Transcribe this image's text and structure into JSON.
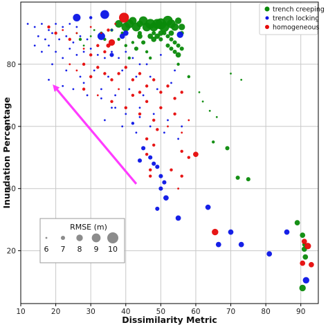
{
  "chart_data": {
    "type": "scatter",
    "xlabel": "Dissimilarity Metric",
    "ylabel": "Inundation Percentage",
    "xlim": [
      10,
      95
    ],
    "ylim": [
      3,
      100
    ],
    "xticks": [
      10,
      20,
      30,
      40,
      50,
      60,
      70,
      80,
      90
    ],
    "yticks": [
      20,
      40,
      60,
      80
    ],
    "grid": true,
    "legend": {
      "position": "top-right",
      "entries": [
        "trench creeping",
        "trench locking",
        "homogeneous"
      ]
    },
    "size_legend": {
      "title": "RMSE (m)",
      "values": [
        6,
        7,
        8,
        9,
        10
      ],
      "position": "bottom-left"
    },
    "annotation": {
      "type": "arrow",
      "color": "#ff3cff",
      "from": [
        43,
        41.5
      ],
      "to": [
        19.5,
        73
      ]
    },
    "series": [
      {
        "name": "trench creeping",
        "color": "#0a8a0a",
        "points": [
          [
            38,
            93,
            8.5
          ],
          [
            40,
            92,
            9
          ],
          [
            41,
            93,
            9
          ],
          [
            42,
            94,
            8.5
          ],
          [
            43,
            92,
            9
          ],
          [
            44,
            93,
            8
          ],
          [
            45,
            94,
            9
          ],
          [
            46,
            92,
            9
          ],
          [
            47,
            93,
            9.5
          ],
          [
            48,
            92,
            9
          ],
          [
            49,
            93,
            9.5
          ],
          [
            50,
            93,
            10
          ],
          [
            51,
            92,
            9.5
          ],
          [
            52,
            94,
            9.5
          ],
          [
            53,
            93,
            9
          ],
          [
            54,
            92,
            8.5
          ],
          [
            55,
            94,
            8
          ],
          [
            56,
            92,
            8
          ],
          [
            44,
            89,
            7.5
          ],
          [
            45,
            87,
            7
          ],
          [
            47,
            89,
            7.5
          ],
          [
            48,
            88,
            7.5
          ],
          [
            49,
            89,
            7.5
          ],
          [
            50,
            88,
            7
          ],
          [
            51,
            90,
            7
          ],
          [
            52,
            89,
            7
          ],
          [
            53,
            88,
            7
          ],
          [
            54,
            87,
            7
          ],
          [
            55,
            86,
            7
          ],
          [
            54,
            84,
            7
          ],
          [
            55,
            83,
            7.5
          ],
          [
            56,
            85,
            7
          ],
          [
            53,
            90,
            7.5
          ],
          [
            52,
            86,
            7
          ],
          [
            43,
            85,
            7
          ],
          [
            42,
            87,
            6.5
          ],
          [
            40,
            86,
            6.5
          ],
          [
            46,
            84,
            6.5
          ],
          [
            47,
            82,
            6.5
          ],
          [
            41,
            82,
            6.5
          ],
          [
            33,
            90,
            6.5
          ],
          [
            34,
            88,
            6.5
          ],
          [
            28,
            86,
            6
          ],
          [
            27,
            88,
            6.5
          ],
          [
            26,
            90,
            6
          ],
          [
            30,
            89,
            6
          ],
          [
            31,
            91,
            6
          ],
          [
            44,
            90,
            7
          ],
          [
            48,
            90,
            7
          ],
          [
            50,
            90,
            7.5
          ],
          [
            56,
            90,
            7
          ],
          [
            53,
            85,
            7
          ],
          [
            38,
            88,
            6.5
          ],
          [
            36,
            91,
            6.5
          ],
          [
            39,
            90,
            6.5
          ],
          [
            55,
            80,
            6.5
          ],
          [
            58,
            76,
            6.5
          ],
          [
            61,
            71,
            6
          ],
          [
            62,
            68,
            6
          ],
          [
            64,
            65,
            6
          ],
          [
            66,
            63,
            6
          ],
          [
            70,
            77,
            6
          ],
          [
            73,
            75,
            6
          ],
          [
            69,
            53,
            7
          ],
          [
            65,
            55,
            6.5
          ],
          [
            72,
            43.5,
            7
          ],
          [
            75,
            43,
            7
          ],
          [
            89,
            29,
            7.5
          ],
          [
            90.5,
            25,
            7.5
          ],
          [
            91,
            22,
            7
          ],
          [
            91.3,
            18,
            7.5
          ],
          [
            91,
            20.5,
            7.5
          ],
          [
            90.5,
            8,
            8
          ]
        ]
      },
      {
        "name": "trench locking",
        "color": "#0a14e6",
        "points": [
          [
            12,
            93,
            6
          ],
          [
            14,
            92,
            6
          ],
          [
            16,
            93,
            6
          ],
          [
            18,
            91,
            6
          ],
          [
            20,
            93,
            6
          ],
          [
            22,
            92,
            6
          ],
          [
            24,
            93,
            6
          ],
          [
            26,
            92,
            6
          ],
          [
            15,
            89,
            6
          ],
          [
            17,
            88,
            6
          ],
          [
            19,
            90,
            6
          ],
          [
            21,
            88,
            6
          ],
          [
            23,
            89,
            6
          ],
          [
            25,
            87,
            6
          ],
          [
            27,
            89,
            6
          ],
          [
            29,
            88,
            6
          ],
          [
            14,
            86,
            6
          ],
          [
            16,
            84,
            6
          ],
          [
            18,
            86,
            6
          ],
          [
            20,
            84,
            6
          ],
          [
            22,
            82,
            6
          ],
          [
            24,
            85,
            6
          ],
          [
            26,
            83,
            6
          ],
          [
            28,
            84,
            6
          ],
          [
            30,
            85,
            6
          ],
          [
            32,
            83,
            6
          ],
          [
            34,
            82,
            6
          ],
          [
            36,
            84,
            6
          ],
          [
            38,
            82,
            6
          ],
          [
            40,
            84,
            6
          ],
          [
            42,
            82,
            6
          ],
          [
            44,
            80,
            6
          ],
          [
            19,
            80,
            6
          ],
          [
            23,
            78,
            6
          ],
          [
            27,
            76,
            6
          ],
          [
            31,
            78,
            6
          ],
          [
            35,
            76,
            6
          ],
          [
            39,
            78,
            6
          ],
          [
            43,
            76,
            6
          ],
          [
            47,
            76,
            6
          ],
          [
            25,
            72,
            6
          ],
          [
            29,
            70,
            6
          ],
          [
            33,
            72,
            6
          ],
          [
            37,
            70,
            6
          ],
          [
            41,
            72,
            6
          ],
          [
            45,
            70,
            6
          ],
          [
            49,
            72,
            6
          ],
          [
            53,
            74,
            6
          ],
          [
            36,
            66,
            6
          ],
          [
            40,
            64,
            6
          ],
          [
            44,
            66,
            6
          ],
          [
            48,
            64,
            6
          ],
          [
            52,
            62,
            6
          ],
          [
            56,
            60,
            6
          ],
          [
            39,
            60,
            6
          ],
          [
            43,
            58,
            6
          ],
          [
            47,
            60,
            6
          ],
          [
            51,
            58,
            6
          ],
          [
            55,
            56,
            6
          ],
          [
            34,
            62,
            6
          ],
          [
            42,
            61,
            6.5
          ],
          [
            33,
            69,
            6
          ],
          [
            37,
            66,
            6
          ],
          [
            30,
            95,
            6.5
          ],
          [
            36,
            91,
            6
          ],
          [
            46,
            80,
            6
          ],
          [
            50,
            83,
            6
          ],
          [
            54,
            78,
            6
          ],
          [
            18,
            75,
            6
          ],
          [
            22,
            73,
            6
          ],
          [
            28,
            74,
            6
          ],
          [
            44,
            63,
            6
          ],
          [
            26,
            95,
            8.5
          ],
          [
            33,
            89,
            8.5
          ],
          [
            34,
            96,
            9
          ],
          [
            39,
            89,
            7.5
          ],
          [
            40,
            90,
            7.5
          ],
          [
            55.5,
            89.5,
            8
          ],
          [
            36,
            83,
            7
          ],
          [
            45,
            53,
            7
          ],
          [
            47,
            50,
            7
          ],
          [
            49,
            47,
            7
          ],
          [
            50,
            44,
            7
          ],
          [
            51,
            42,
            7
          ],
          [
            44,
            49,
            7
          ],
          [
            48,
            48,
            7
          ],
          [
            50,
            40,
            7
          ],
          [
            51.5,
            37,
            7.5
          ],
          [
            49,
            33.5,
            7
          ],
          [
            55,
            30.5,
            7.5
          ],
          [
            63.5,
            34,
            7.5
          ],
          [
            66.5,
            22,
            7.5
          ],
          [
            70,
            26,
            7.5
          ],
          [
            73,
            22,
            7.5
          ],
          [
            81,
            19,
            7.5
          ],
          [
            86,
            26,
            7.5
          ],
          [
            91.5,
            10.5,
            8
          ]
        ]
      },
      {
        "name": "homogeneous",
        "color": "#e60a0a",
        "points": [
          [
            39.5,
            95,
            9.5
          ],
          [
            18,
            92,
            6.5
          ],
          [
            20,
            90,
            6.5
          ],
          [
            22,
            91,
            6
          ],
          [
            24,
            88,
            6.5
          ],
          [
            26,
            90,
            6
          ],
          [
            30,
            92,
            6
          ],
          [
            33,
            90,
            6
          ],
          [
            35,
            91,
            6.5
          ],
          [
            37,
            93,
            6
          ],
          [
            36,
            87,
            8
          ],
          [
            35,
            86,
            7
          ],
          [
            34,
            84,
            6.5
          ],
          [
            32,
            86,
            6.5
          ],
          [
            30,
            83,
            6.5
          ],
          [
            28,
            85,
            6
          ],
          [
            24,
            80,
            6
          ],
          [
            26,
            78,
            6
          ],
          [
            28,
            80,
            6.5
          ],
          [
            30,
            76,
            6.5
          ],
          [
            32,
            79,
            6.5
          ],
          [
            34,
            77,
            6.5
          ],
          [
            36,
            75,
            6.5
          ],
          [
            38,
            77,
            6.5
          ],
          [
            40,
            79,
            6.5
          ],
          [
            42,
            75,
            6.5
          ],
          [
            44,
            77,
            6.5
          ],
          [
            46,
            73,
            6.5
          ],
          [
            48,
            75,
            6.5
          ],
          [
            50,
            71,
            6.5
          ],
          [
            52,
            73,
            6.5
          ],
          [
            54,
            69,
            6.5
          ],
          [
            56,
            71,
            6.5
          ],
          [
            28,
            72,
            6.5
          ],
          [
            32,
            70,
            6
          ],
          [
            36,
            68,
            6.5
          ],
          [
            40,
            66,
            6.5
          ],
          [
            44,
            64,
            6.5
          ],
          [
            48,
            62,
            6.5
          ],
          [
            52,
            60,
            6
          ],
          [
            56,
            58,
            6
          ],
          [
            38,
            72,
            6
          ],
          [
            42,
            70,
            6.5
          ],
          [
            46,
            68,
            6.5
          ],
          [
            50,
            66,
            6.5
          ],
          [
            54,
            64,
            6.5
          ],
          [
            58,
            62,
            6
          ],
          [
            46,
            56,
            6.5
          ],
          [
            48,
            54,
            6.5
          ],
          [
            46,
            51,
            6.5
          ],
          [
            47,
            46,
            6.5
          ],
          [
            47,
            44,
            6.5
          ],
          [
            56,
            52,
            6.5
          ],
          [
            58,
            50,
            6.5
          ],
          [
            60,
            51,
            7.5
          ],
          [
            53,
            46,
            6.5
          ],
          [
            56,
            44,
            6.5
          ],
          [
            55,
            40,
            6
          ],
          [
            44,
            71,
            6.5
          ],
          [
            49,
            59,
            6.5
          ],
          [
            65.5,
            26,
            8
          ],
          [
            91,
            23,
            7.5
          ],
          [
            92,
            21.5,
            8
          ],
          [
            90.5,
            16,
            7.5
          ],
          [
            93,
            15.5,
            7.5
          ]
        ]
      }
    ]
  }
}
